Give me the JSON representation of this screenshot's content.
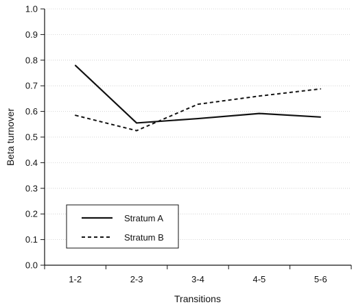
{
  "chart_data": {
    "type": "line",
    "title": "",
    "xlabel": "Transitions",
    "ylabel": "Beta turnover",
    "categories": [
      "1-2",
      "2-3",
      "3-4",
      "4-5",
      "5-6"
    ],
    "ylim": [
      0.0,
      1.0
    ],
    "yticks": [
      "0.0",
      "0.1",
      "0.2",
      "0.3",
      "0.4",
      "0.5",
      "0.6",
      "0.7",
      "0.8",
      "0.9",
      "1.0"
    ],
    "grid": true,
    "legend_position": "bottom-left",
    "series": [
      {
        "name": "Stratum A",
        "line_style": "solid",
        "color": "#111111",
        "values": [
          0.78,
          0.555,
          0.572,
          0.592,
          0.578
        ]
      },
      {
        "name": "Stratum B",
        "line_style": "dashed",
        "color": "#111111",
        "values": [
          0.585,
          0.525,
          0.628,
          0.66,
          0.688
        ]
      }
    ]
  }
}
